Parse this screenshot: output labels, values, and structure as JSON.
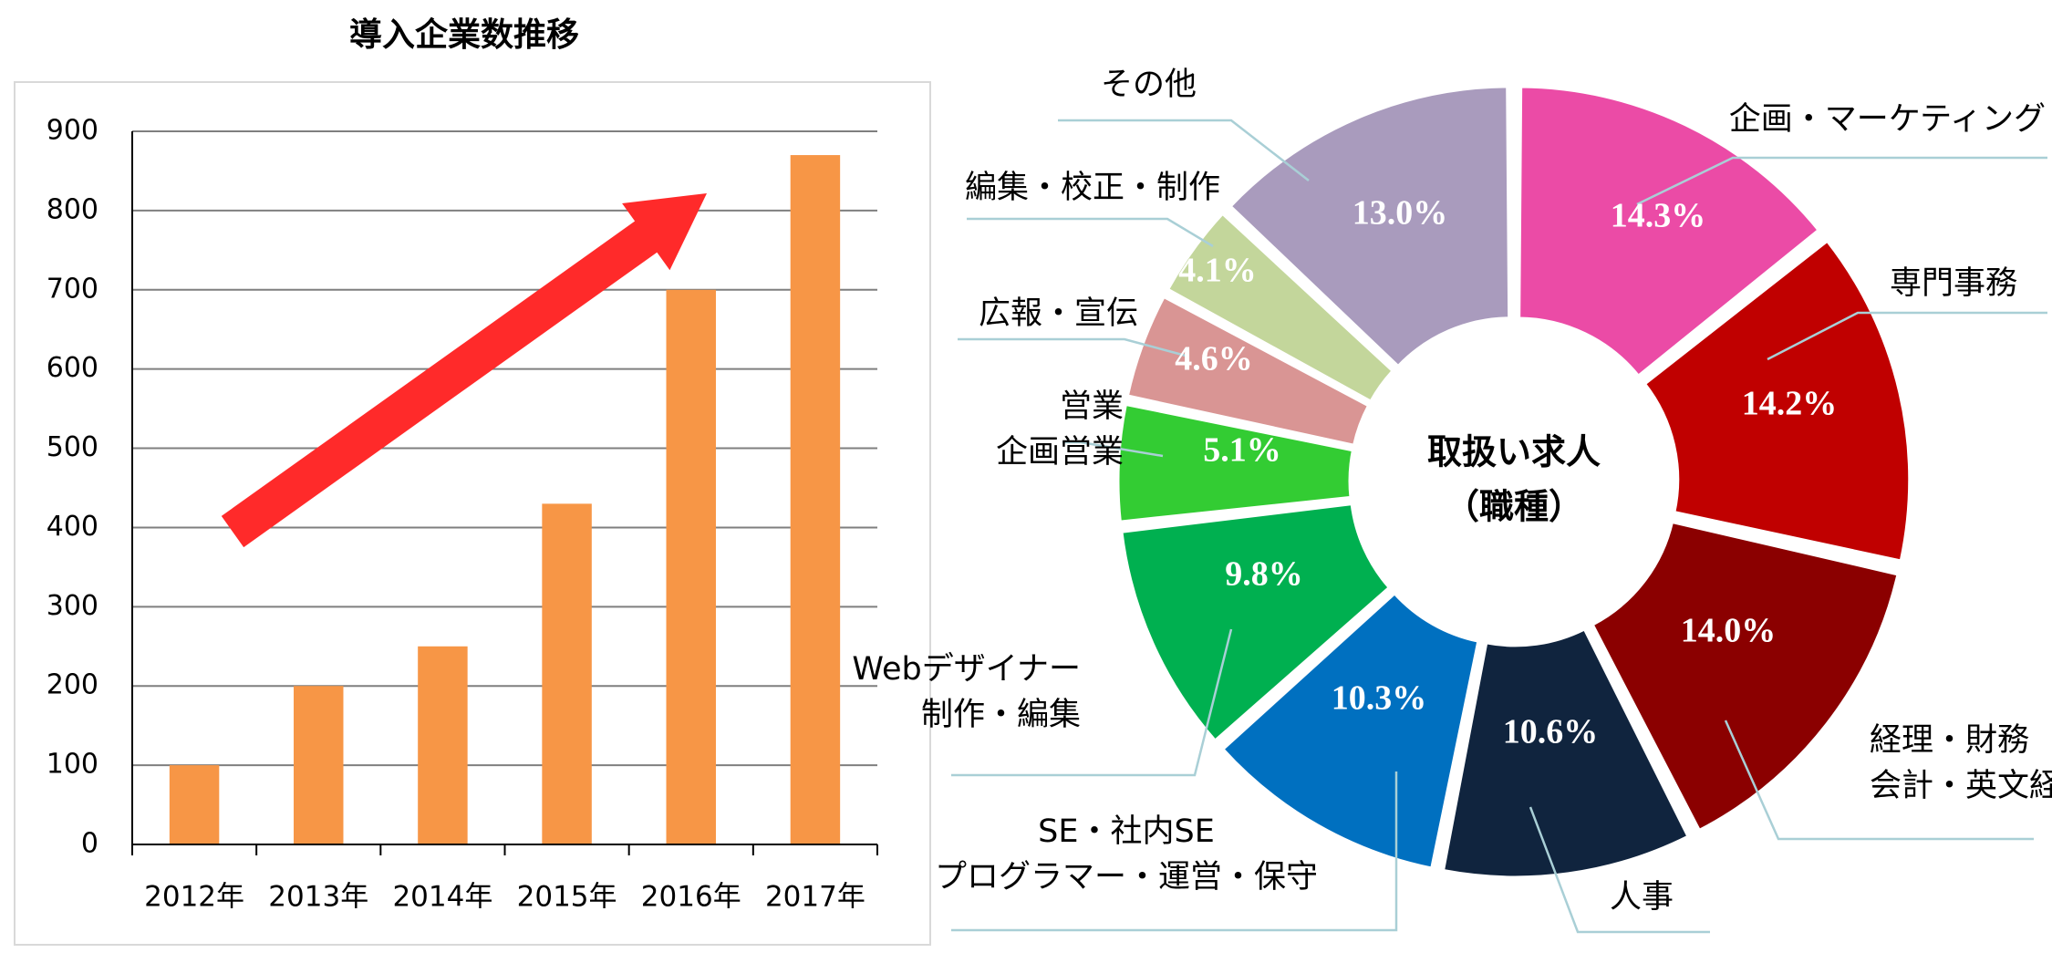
{
  "colors": {
    "bar": "#F79646",
    "arrow": "#FF2A2A",
    "grid": "#7F7F7F",
    "axis": "#000000",
    "frame": "#D9D9D9",
    "leader": "#A9CFD6",
    "label_text": "#000000",
    "pct_text": "#FFFFFF"
  },
  "icons": {
    "trend": "trend-arrow"
  },
  "chart_data": [
    {
      "type": "bar",
      "title": "導入企業数推移",
      "xlabel": "",
      "ylabel": "",
      "categories": [
        "2012年",
        "2013年",
        "2014年",
        "2015年",
        "2016年",
        "2017年"
      ],
      "values": [
        100,
        200,
        250,
        430,
        700,
        870
      ],
      "ylim": [
        0,
        900
      ],
      "ytick_step": 100,
      "yticks": [
        "0",
        "100",
        "200",
        "300",
        "400",
        "500",
        "600",
        "700",
        "800",
        "900"
      ],
      "grid": true,
      "legend": "none",
      "annotation": "upward trend arrow"
    },
    {
      "type": "pie",
      "style": "donut",
      "center_label": [
        "取扱い求人",
        "（職種）"
      ],
      "legend": "none",
      "slices": [
        {
          "label": [
            "企画・マーケティング"
          ],
          "value": 14.3,
          "text": "14.3%",
          "color": "#EB4BA6"
        },
        {
          "label": [
            "専門事務"
          ],
          "value": 14.2,
          "text": "14.2%",
          "color": "#C00000"
        },
        {
          "label": [
            "経理・財務",
            "会計・英文経理"
          ],
          "value": 14.0,
          "text": "14.0%",
          "color": "#8B0000"
        },
        {
          "label": [
            "人事"
          ],
          "value": 10.6,
          "text": "10.6%",
          "color": "#10243E"
        },
        {
          "label": [
            "SE・社内SE",
            "プログラマー・運営・保守"
          ],
          "value": 10.3,
          "text": "10.3%",
          "color": "#0070C0"
        },
        {
          "label": [
            "Webデザイナー",
            "制作・編集"
          ],
          "value": 9.8,
          "text": "9.8%",
          "color": "#00B050"
        },
        {
          "label": [
            "営業",
            "企画営業"
          ],
          "value": 5.1,
          "text": "5.1%",
          "color": "#33CC33"
        },
        {
          "label": [
            "広報・宣伝"
          ],
          "value": 4.6,
          "text": "4.6%",
          "color": "#D99594"
        },
        {
          "label": [
            "編集・校正・制作"
          ],
          "value": 4.1,
          "text": "4.1%",
          "color": "#C3D69B"
        },
        {
          "label": [
            "その他"
          ],
          "value": 13.0,
          "text": "13.0%",
          "color": "#A99BBD"
        }
      ]
    }
  ]
}
